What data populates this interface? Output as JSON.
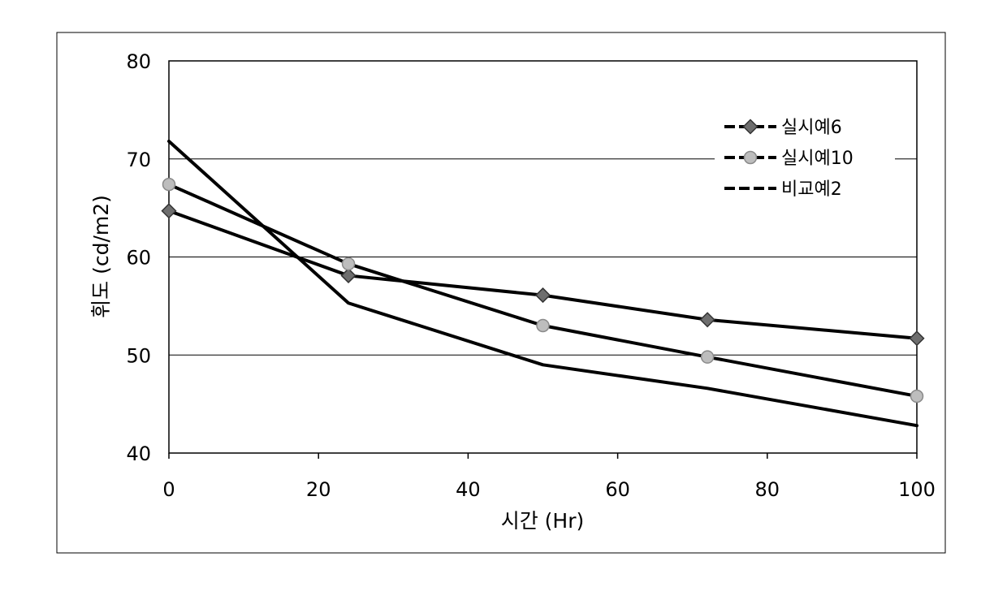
{
  "chart_data": {
    "type": "line",
    "title": "",
    "xlabel": "시간 (Hr)",
    "ylabel": "휘도 (cd/m2)",
    "xlim": [
      0,
      100
    ],
    "ylim": [
      40,
      80
    ],
    "x_ticks": [
      0,
      20,
      40,
      60,
      80,
      100
    ],
    "y_ticks": [
      40,
      50,
      60,
      70,
      80
    ],
    "grid": "horizontal",
    "legend_position": "top-right",
    "series": [
      {
        "name": "실시예6",
        "marker": "diamond",
        "marker_color": "#6e6e6e",
        "x": [
          0,
          24,
          50,
          72,
          100
        ],
        "y": [
          64.7,
          58.1,
          56.1,
          53.6,
          51.7
        ]
      },
      {
        "name": "실시예10",
        "marker": "circle",
        "marker_color": "#bdbdbd",
        "x": [
          0,
          24,
          50,
          72,
          100
        ],
        "y": [
          67.4,
          59.3,
          53.0,
          49.8,
          45.8
        ]
      },
      {
        "name": "비교예2",
        "marker": "none",
        "marker_color": "#000000",
        "x": [
          0,
          24,
          50,
          72,
          100
        ],
        "y": [
          71.8,
          55.3,
          49.0,
          46.6,
          42.8
        ]
      }
    ]
  }
}
